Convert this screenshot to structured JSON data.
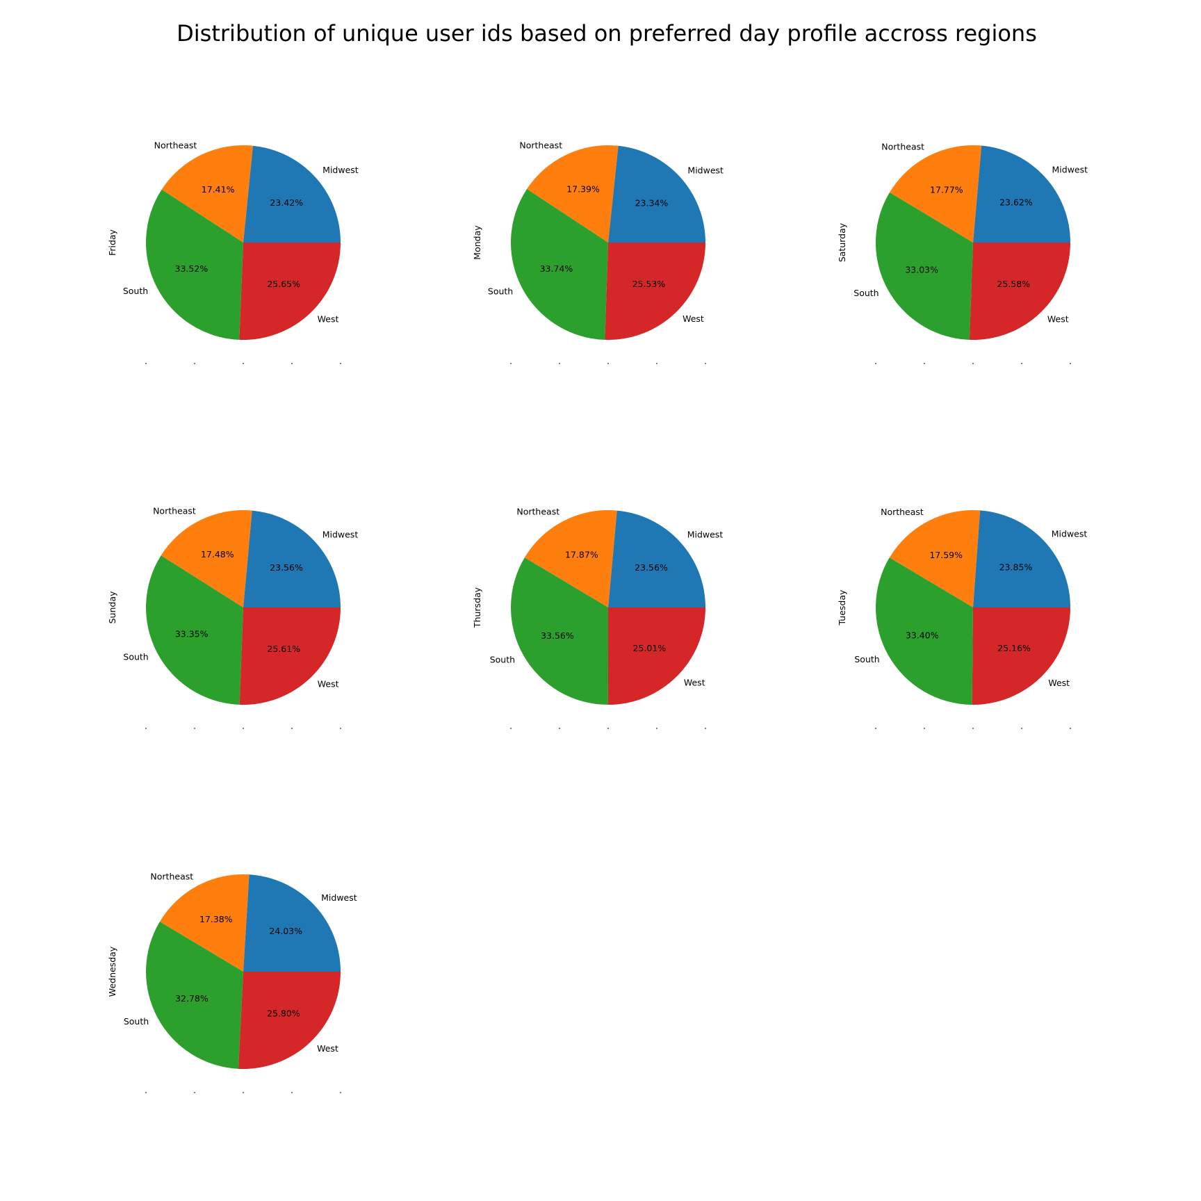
{
  "figure": {
    "title": "Distribution of unique user ids based on preferred day profile accross regions"
  },
  "chart_data": [
    {
      "type": "pie",
      "ylabel": "Friday",
      "categories": [
        "Midwest",
        "Northeast",
        "South",
        "West"
      ],
      "values": [
        23.42,
        17.41,
        33.52,
        25.65
      ],
      "value_labels": [
        "23.42%",
        "17.41%",
        "33.52%",
        "25.65%"
      ],
      "colors": [
        "#1f77b4",
        "#ff7f0e",
        "#2ca02c",
        "#d62728"
      ]
    },
    {
      "type": "pie",
      "ylabel": "Monday",
      "categories": [
        "Midwest",
        "Northeast",
        "South",
        "West"
      ],
      "values": [
        23.34,
        17.39,
        33.74,
        25.53
      ],
      "value_labels": [
        "23.34%",
        "17.39%",
        "33.74%",
        "25.53%"
      ],
      "colors": [
        "#1f77b4",
        "#ff7f0e",
        "#2ca02c",
        "#d62728"
      ]
    },
    {
      "type": "pie",
      "ylabel": "Saturday",
      "categories": [
        "Midwest",
        "Northeast",
        "South",
        "West"
      ],
      "values": [
        23.62,
        17.77,
        33.03,
        25.58
      ],
      "value_labels": [
        "23.62%",
        "17.77%",
        "33.03%",
        "25.58%"
      ],
      "colors": [
        "#1f77b4",
        "#ff7f0e",
        "#2ca02c",
        "#d62728"
      ]
    },
    {
      "type": "pie",
      "ylabel": "Sunday",
      "categories": [
        "Midwest",
        "Northeast",
        "South",
        "West"
      ],
      "values": [
        23.56,
        17.48,
        33.35,
        25.61
      ],
      "value_labels": [
        "23.56%",
        "17.48%",
        "33.35%",
        "25.61%"
      ],
      "colors": [
        "#1f77b4",
        "#ff7f0e",
        "#2ca02c",
        "#d62728"
      ]
    },
    {
      "type": "pie",
      "ylabel": "Thursday",
      "categories": [
        "Midwest",
        "Northeast",
        "South",
        "West"
      ],
      "values": [
        23.56,
        17.87,
        33.56,
        25.01
      ],
      "value_labels": [
        "23.56%",
        "17.87%",
        "33.56%",
        "25.01%"
      ],
      "colors": [
        "#1f77b4",
        "#ff7f0e",
        "#2ca02c",
        "#d62728"
      ]
    },
    {
      "type": "pie",
      "ylabel": "Tuesday",
      "categories": [
        "Midwest",
        "Northeast",
        "South",
        "West"
      ],
      "values": [
        23.85,
        17.59,
        33.4,
        25.16
      ],
      "value_labels": [
        "23.85%",
        "17.59%",
        "33.40%",
        "25.16%"
      ],
      "colors": [
        "#1f77b4",
        "#ff7f0e",
        "#2ca02c",
        "#d62728"
      ]
    },
    {
      "type": "pie",
      "ylabel": "Wednesday",
      "categories": [
        "Midwest",
        "Northeast",
        "South",
        "West"
      ],
      "values": [
        24.03,
        17.38,
        32.78,
        25.8
      ],
      "value_labels": [
        "24.03%",
        "17.38%",
        "32.78%",
        "25.80%"
      ],
      "colors": [
        "#1f77b4",
        "#ff7f0e",
        "#2ca02c",
        "#d62728"
      ]
    }
  ]
}
